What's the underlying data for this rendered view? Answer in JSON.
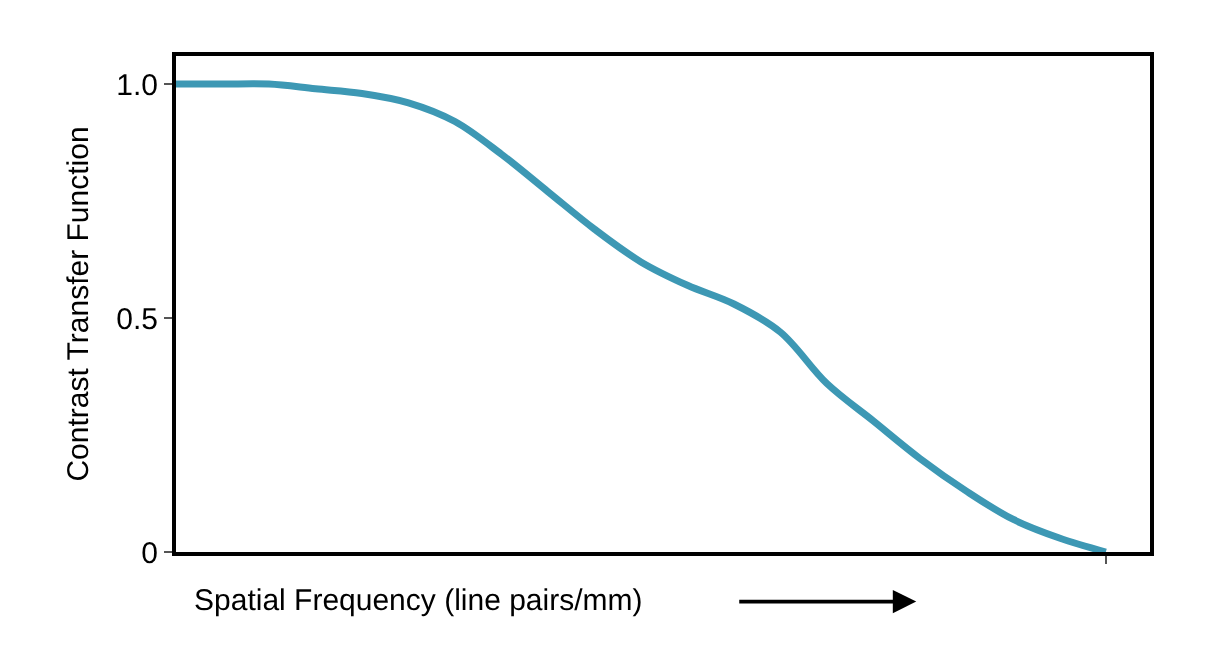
{
  "chart_data": {
    "type": "line",
    "xlabel": "Spatial Frequency (line pairs/mm)",
    "ylabel": "Contrast Transfer Function",
    "categories": [
      null,
      null,
      null,
      null,
      null,
      null,
      null,
      null,
      null,
      null,
      null,
      null,
      null,
      null,
      null,
      null,
      null,
      null,
      null,
      null,
      null
    ],
    "series": [
      {
        "color": "#3d98b4",
        "values": [
          1.0,
          1.0,
          1.0,
          0.99,
          0.98,
          0.96,
          0.92,
          0.85,
          0.77,
          0.69,
          0.62,
          0.57,
          0.53,
          0.47,
          0.36,
          0.28,
          0.2,
          0.13,
          0.07,
          0.03,
          0.0
        ]
      }
    ],
    "ylim": [
      0,
      1.06
    ],
    "yticks": [
      0,
      0.5,
      {
        "value": 1.0,
        "label": "1.0"
      }
    ],
    "tick_labels": "y",
    "marker": "none",
    "line_style": "solid"
  }
}
